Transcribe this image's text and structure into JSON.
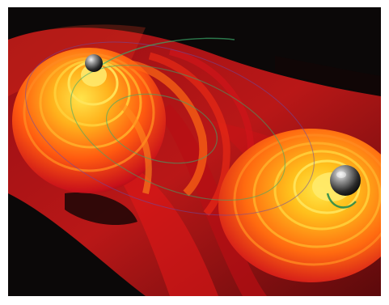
{
  "image": {
    "subject": "binary-black-hole-merger-gravitational-wave-visualization",
    "palette": {
      "background": "#0b0808",
      "wave_red": "#d8141a",
      "wave_orange": "#ff6a10",
      "wave_yellow": "#ffd21c",
      "orbit_green": "#3aa86a",
      "orbit_violet": "#6a4aa8",
      "black_hole_highlight": "#d9d9d9",
      "black_hole_body": "#2a2a2a"
    },
    "objects": [
      {
        "name": "black-hole-top-left",
        "shape": "sphere"
      },
      {
        "name": "black-hole-bottom-right",
        "shape": "sphere"
      }
    ],
    "wave_rings_per_lobe": 5
  }
}
